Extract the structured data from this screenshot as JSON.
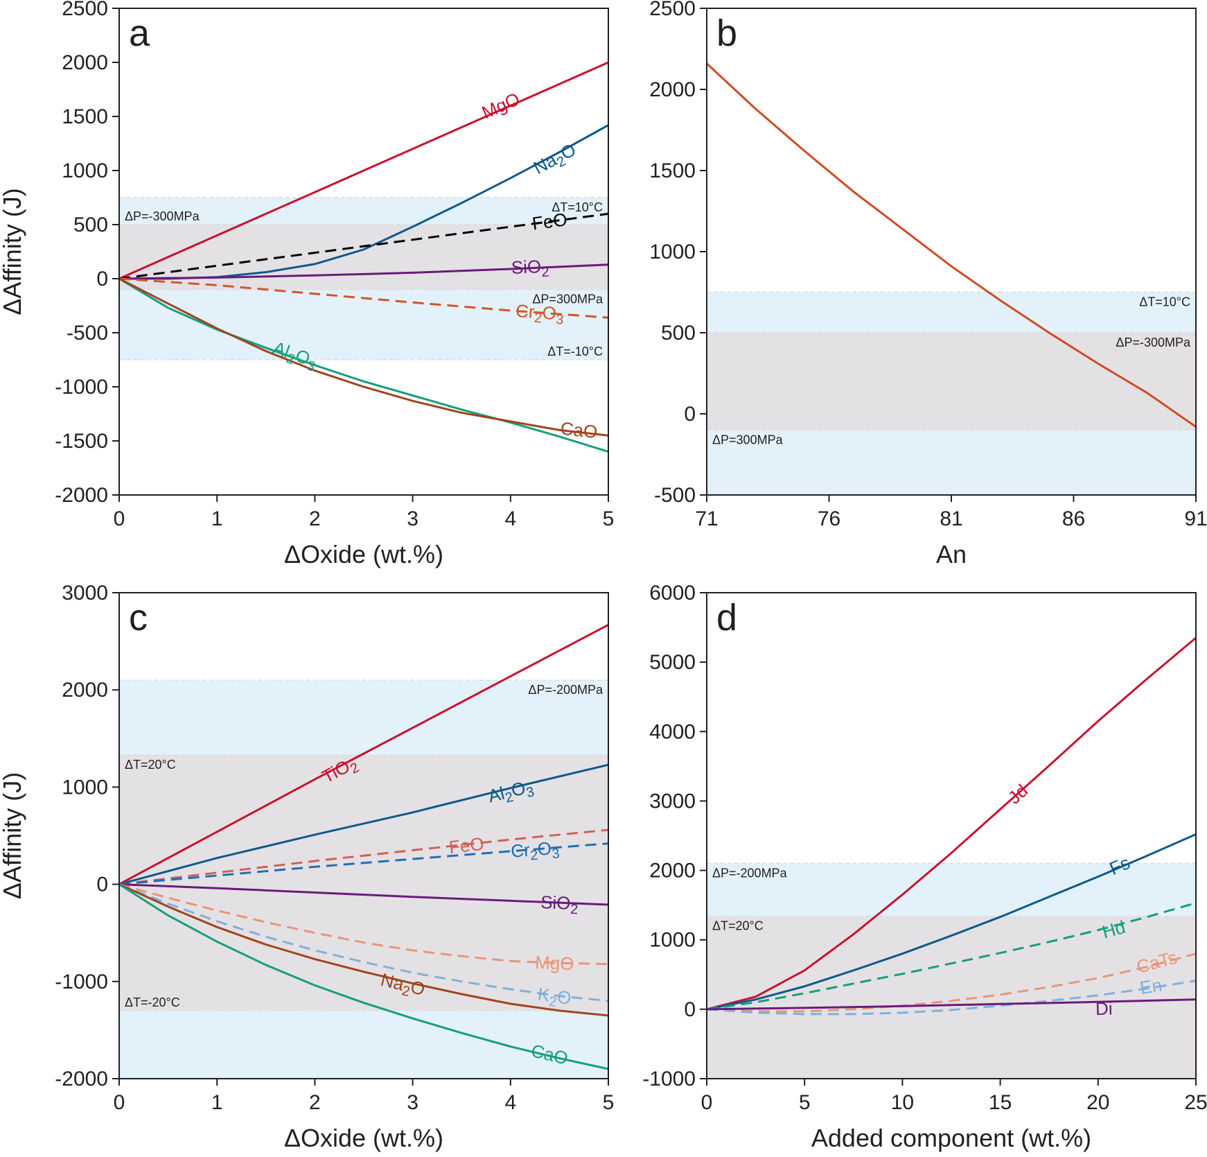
{
  "chart_data": [
    {
      "panel": "a",
      "type": "line",
      "xlabel": "ΔOxide (wt.%)",
      "ylabel": "ΔAffinity (J)",
      "xlim": [
        0,
        5
      ],
      "ylim": [
        -2000,
        2500
      ],
      "xticks": [
        0,
        1,
        2,
        3,
        4,
        5
      ],
      "yticks": [
        -2000,
        -1500,
        -1000,
        -500,
        0,
        500,
        1000,
        1500,
        2000,
        2500
      ],
      "bands": [
        {
          "kind": "dT",
          "y0": -750,
          "y1": 750,
          "color": "#e3f1fa"
        },
        {
          "kind": "dP",
          "y0": -100,
          "y1": 500,
          "color": "#e4e1e4"
        }
      ],
      "band_labels": [
        {
          "text": "ΔT=10°C",
          "y": 750,
          "side": "right",
          "pos": "below"
        },
        {
          "text": "ΔP=-300MPa",
          "y": 500,
          "side": "left",
          "pos": "above"
        },
        {
          "text": "ΔP=300MPa",
          "y": -100,
          "side": "right",
          "pos": "below"
        },
        {
          "text": "ΔT=-10°C",
          "y": -750,
          "side": "right",
          "pos": "above"
        }
      ],
      "series": [
        {
          "name": "MgO",
          "label": "MgO",
          "color": "#c8102e",
          "dash": false,
          "x": [
            0,
            1,
            2,
            3,
            4,
            5
          ],
          "y": [
            0,
            400,
            800,
            1200,
            1600,
            2000
          ],
          "label_x": 3.9,
          "label_y": 1600
        },
        {
          "name": "Na2O",
          "label": "Na₂O",
          "color": "#0b5a8c",
          "dash": false,
          "x": [
            0,
            0.5,
            1,
            1.5,
            2,
            2.5,
            3,
            3.5,
            4,
            4.5,
            5
          ],
          "y": [
            0,
            0,
            15,
            60,
            135,
            270,
            480,
            700,
            930,
            1170,
            1420
          ],
          "label_x": 4.45,
          "label_y": 1110
        },
        {
          "name": "FeO",
          "label": "FeO",
          "color": "#000000",
          "dash": true,
          "x": [
            0,
            1,
            2,
            3,
            4,
            5
          ],
          "y": [
            0,
            120,
            240,
            360,
            480,
            600
          ],
          "label_x": 4.4,
          "label_y": 530
        },
        {
          "name": "SiO2",
          "label": "SiO₂",
          "color": "#6a1b7a",
          "dash": false,
          "x": [
            0,
            1,
            2,
            3,
            4,
            5
          ],
          "y": [
            0,
            10,
            30,
            55,
            90,
            130
          ],
          "label_x": 4.2,
          "label_y": 110
        },
        {
          "name": "Cr2O3",
          "label": "Cr₂O₃",
          "color": "#d4542a",
          "dash": true,
          "x": [
            0,
            1,
            2,
            3,
            4,
            5
          ],
          "y": [
            0,
            -60,
            -140,
            -220,
            -295,
            -360
          ],
          "label_x": 4.3,
          "label_y": -310
        },
        {
          "name": "Al2O3",
          "label": "Al₂O₃",
          "color": "#13a07a",
          "dash": false,
          "x": [
            0,
            0.5,
            1,
            1.5,
            2,
            2.5,
            3,
            3.5,
            4,
            4.5,
            5
          ],
          "y": [
            0,
            -270,
            -470,
            -640,
            -800,
            -950,
            -1080,
            -1210,
            -1330,
            -1460,
            -1600
          ],
          "label_x": 1.8,
          "label_y": -700
        },
        {
          "name": "CaO",
          "label": "CaO",
          "color": "#a1441d",
          "dash": false,
          "x": [
            0,
            0.5,
            1,
            1.5,
            2,
            2.5,
            3,
            3.5,
            4,
            4.5,
            5
          ],
          "y": [
            0,
            -230,
            -460,
            -670,
            -850,
            -1000,
            -1130,
            -1240,
            -1320,
            -1400,
            -1450
          ],
          "label_x": 4.7,
          "label_y": -1400
        }
      ]
    },
    {
      "panel": "b",
      "type": "line",
      "xlabel": "An",
      "ylabel": "",
      "xlim": [
        71,
        91
      ],
      "ylim": [
        -500,
        2500
      ],
      "xticks": [
        71,
        76,
        81,
        86,
        91
      ],
      "yticks": [
        -500,
        0,
        500,
        1000,
        1500,
        2000,
        2500
      ],
      "bands": [
        {
          "kind": "dT",
          "y0": -500,
          "y1": 750,
          "color": "#e3f1fa"
        },
        {
          "kind": "dP",
          "y0": -100,
          "y1": 500,
          "color": "#e4e1e4"
        }
      ],
      "band_labels": [
        {
          "text": "ΔT=10°C",
          "y": 750,
          "side": "right",
          "pos": "below"
        },
        {
          "text": "ΔP=-300MPa",
          "y": 500,
          "side": "right",
          "pos": "below"
        },
        {
          "text": "ΔP=300MPa",
          "y": -100,
          "side": "left",
          "pos": "below"
        }
      ],
      "series": [
        {
          "name": "An",
          "label": "",
          "color": "#cf4b22",
          "dash": false,
          "x": [
            71,
            73,
            75,
            77,
            79,
            81,
            83,
            85,
            87,
            89,
            91
          ],
          "y": [
            2160,
            1880,
            1620,
            1370,
            1140,
            910,
            700,
            500,
            310,
            130,
            -80
          ],
          "label_x": null,
          "label_y": null
        }
      ]
    },
    {
      "panel": "c",
      "type": "line",
      "xlabel": "ΔOxide (wt.%)",
      "ylabel": "ΔAffinity (J)",
      "xlim": [
        0,
        5
      ],
      "ylim": [
        -2000,
        3000
      ],
      "xticks": [
        0,
        1,
        2,
        3,
        4,
        5
      ],
      "yticks": [
        -2000,
        -1000,
        0,
        1000,
        2000,
        3000
      ],
      "bands": [
        {
          "kind": "dP",
          "y0": -2000,
          "y1": 2100,
          "color": "#e3f1fa"
        },
        {
          "kind": "dT",
          "y0": -1300,
          "y1": 1330,
          "color": "#e4e1e4"
        }
      ],
      "band_labels": [
        {
          "text": "ΔP=-200MPa",
          "y": 2100,
          "side": "right",
          "pos": "below"
        },
        {
          "text": "ΔT=20°C",
          "y": 1330,
          "side": "left",
          "pos": "below"
        },
        {
          "text": "ΔT=-20°C",
          "y": -1300,
          "side": "left",
          "pos": "above"
        }
      ],
      "series": [
        {
          "name": "TiO2",
          "label": "TiO₂",
          "color": "#c8102e",
          "dash": false,
          "x": [
            0,
            1,
            2,
            3,
            4,
            5
          ],
          "y": [
            0,
            540,
            1080,
            1610,
            2140,
            2670
          ],
          "label_x": 2.25,
          "label_y": 1180
        },
        {
          "name": "Al2O3",
          "label": "Al₂O₃",
          "color": "#0b5a8c",
          "dash": false,
          "x": [
            0,
            1,
            2,
            3,
            4,
            5
          ],
          "y": [
            0,
            270,
            510,
            740,
            990,
            1230
          ],
          "label_x": 4.0,
          "label_y": 960
        },
        {
          "name": "FeO",
          "label": "FeO",
          "color": "#d0605a",
          "dash": true,
          "x": [
            0,
            1,
            2,
            3,
            4,
            5
          ],
          "y": [
            0,
            120,
            240,
            350,
            460,
            560
          ],
          "label_x": 3.55,
          "label_y": 400
        },
        {
          "name": "Cr2O3",
          "label": "Cr₂O₃",
          "color": "#1f6fb3",
          "dash": true,
          "x": [
            0,
            1,
            2,
            3,
            4,
            5
          ],
          "y": [
            0,
            90,
            180,
            260,
            340,
            420
          ],
          "label_x": 4.25,
          "label_y": 360
        },
        {
          "name": "SiO2",
          "label": "SiO₂",
          "color": "#6a1b7a",
          "dash": false,
          "x": [
            0,
            1,
            2,
            3,
            4,
            5
          ],
          "y": [
            0,
            -40,
            -85,
            -130,
            -170,
            -210
          ],
          "label_x": 4.5,
          "label_y": -190
        },
        {
          "name": "MgO",
          "label": "MgO",
          "color": "#e8957a",
          "dash": true,
          "x": [
            0,
            0.5,
            1,
            1.5,
            2,
            2.5,
            3,
            3.5,
            4,
            4.5,
            5
          ],
          "y": [
            0,
            -140,
            -270,
            -390,
            -500,
            -600,
            -680,
            -740,
            -790,
            -810,
            -820
          ],
          "label_x": 4.45,
          "label_y": -810
        },
        {
          "name": "K2O",
          "label": "K₂O",
          "color": "#7fb0db",
          "dash": true,
          "x": [
            0,
            0.5,
            1,
            1.5,
            2,
            2.5,
            3,
            3.5,
            4,
            4.5,
            5
          ],
          "y": [
            0,
            -200,
            -380,
            -540,
            -680,
            -800,
            -910,
            -1000,
            -1080,
            -1150,
            -1200
          ],
          "label_x": 4.45,
          "label_y": -1150
        },
        {
          "name": "Na2O",
          "label": "Na₂O",
          "color": "#a1441d",
          "dash": false,
          "x": [
            0,
            0.5,
            1,
            1.5,
            2,
            2.5,
            3,
            3.5,
            4,
            4.5,
            5
          ],
          "y": [
            0,
            -230,
            -440,
            -620,
            -770,
            -900,
            -1020,
            -1130,
            -1230,
            -1300,
            -1350
          ],
          "label_x": 2.9,
          "label_y": -1030
        },
        {
          "name": "CaO",
          "label": "CaO",
          "color": "#13a07a",
          "dash": false,
          "x": [
            0,
            0.5,
            1,
            1.5,
            2,
            2.5,
            3,
            3.5,
            4,
            4.5,
            5
          ],
          "y": [
            0,
            -320,
            -590,
            -830,
            -1040,
            -1220,
            -1380,
            -1530,
            -1670,
            -1790,
            -1900
          ],
          "label_x": 4.4,
          "label_y": -1750
        }
      ]
    },
    {
      "panel": "d",
      "type": "line",
      "xlabel": "Added component (wt.%)",
      "ylabel": "",
      "xlim": [
        0,
        25
      ],
      "ylim": [
        -1000,
        6000
      ],
      "xticks": [
        0,
        5,
        10,
        15,
        20,
        25
      ],
      "yticks": [
        -1000,
        0,
        1000,
        2000,
        3000,
        4000,
        5000,
        6000
      ],
      "bands": [
        {
          "kind": "dP",
          "y0": -1000,
          "y1": 2100,
          "color": "#e3f1fa"
        },
        {
          "kind": "dT",
          "y0": -1000,
          "y1": 1340,
          "color": "#e4e1e4"
        }
      ],
      "band_labels": [
        {
          "text": "ΔP=-200MPa",
          "y": 2100,
          "side": "left",
          "pos": "below"
        },
        {
          "text": "ΔT=20°C",
          "y": 1340,
          "side": "left",
          "pos": "below"
        }
      ],
      "series": [
        {
          "name": "Jd",
          "label": "Jd",
          "color": "#c8102e",
          "dash": false,
          "x": [
            0,
            2.5,
            5,
            7.5,
            10,
            12.5,
            15,
            17.5,
            20,
            22.5,
            25
          ],
          "y": [
            0,
            180,
            560,
            1080,
            1650,
            2250,
            2880,
            3510,
            4150,
            4760,
            5350
          ],
          "label_x": 15.9,
          "label_y": 3100
        },
        {
          "name": "Fs",
          "label": "Fs",
          "color": "#0b5a8c",
          "dash": false,
          "x": [
            0,
            2.5,
            5,
            7.5,
            10,
            12.5,
            15,
            17.5,
            20,
            22.5,
            25
          ],
          "y": [
            0,
            140,
            330,
            560,
            800,
            1060,
            1330,
            1620,
            1910,
            2210,
            2520
          ],
          "label_x": 21.1,
          "label_y": 2070
        },
        {
          "name": "Hd",
          "label": "Hd",
          "color": "#13a07a",
          "dash": true,
          "x": [
            0,
            2.5,
            5,
            7.5,
            10,
            12.5,
            15,
            17.5,
            20,
            22.5,
            25
          ],
          "y": [
            0,
            100,
            230,
            370,
            510,
            660,
            810,
            970,
            1140,
            1330,
            1530
          ],
          "label_x": 20.8,
          "label_y": 1150
        },
        {
          "name": "CaTs",
          "label": "CaTs",
          "color": "#e8957a",
          "dash": true,
          "x": [
            0,
            2.5,
            5,
            7.5,
            10,
            12.5,
            15,
            17.5,
            20,
            22.5,
            25
          ],
          "y": [
            0,
            -30,
            -30,
            0,
            50,
            120,
            210,
            320,
            450,
            610,
            800
          ],
          "label_x": 23.0,
          "label_y": 680
        },
        {
          "name": "En",
          "label": "En",
          "color": "#7fb0db",
          "dash": true,
          "x": [
            0,
            2.5,
            5,
            7.5,
            10,
            12.5,
            15,
            17.5,
            20,
            22.5,
            25
          ],
          "y": [
            0,
            -50,
            -70,
            -70,
            -50,
            -10,
            50,
            120,
            200,
            300,
            410
          ],
          "label_x": 22.7,
          "label_y": 330
        },
        {
          "name": "Di",
          "label": "Di",
          "color": "#6a1b7a",
          "dash": false,
          "x": [
            0,
            5,
            10,
            15,
            20,
            25
          ],
          "y": [
            0,
            20,
            45,
            75,
            105,
            140
          ],
          "label_x": 20.3,
          "label_y": 10
        }
      ]
    }
  ]
}
